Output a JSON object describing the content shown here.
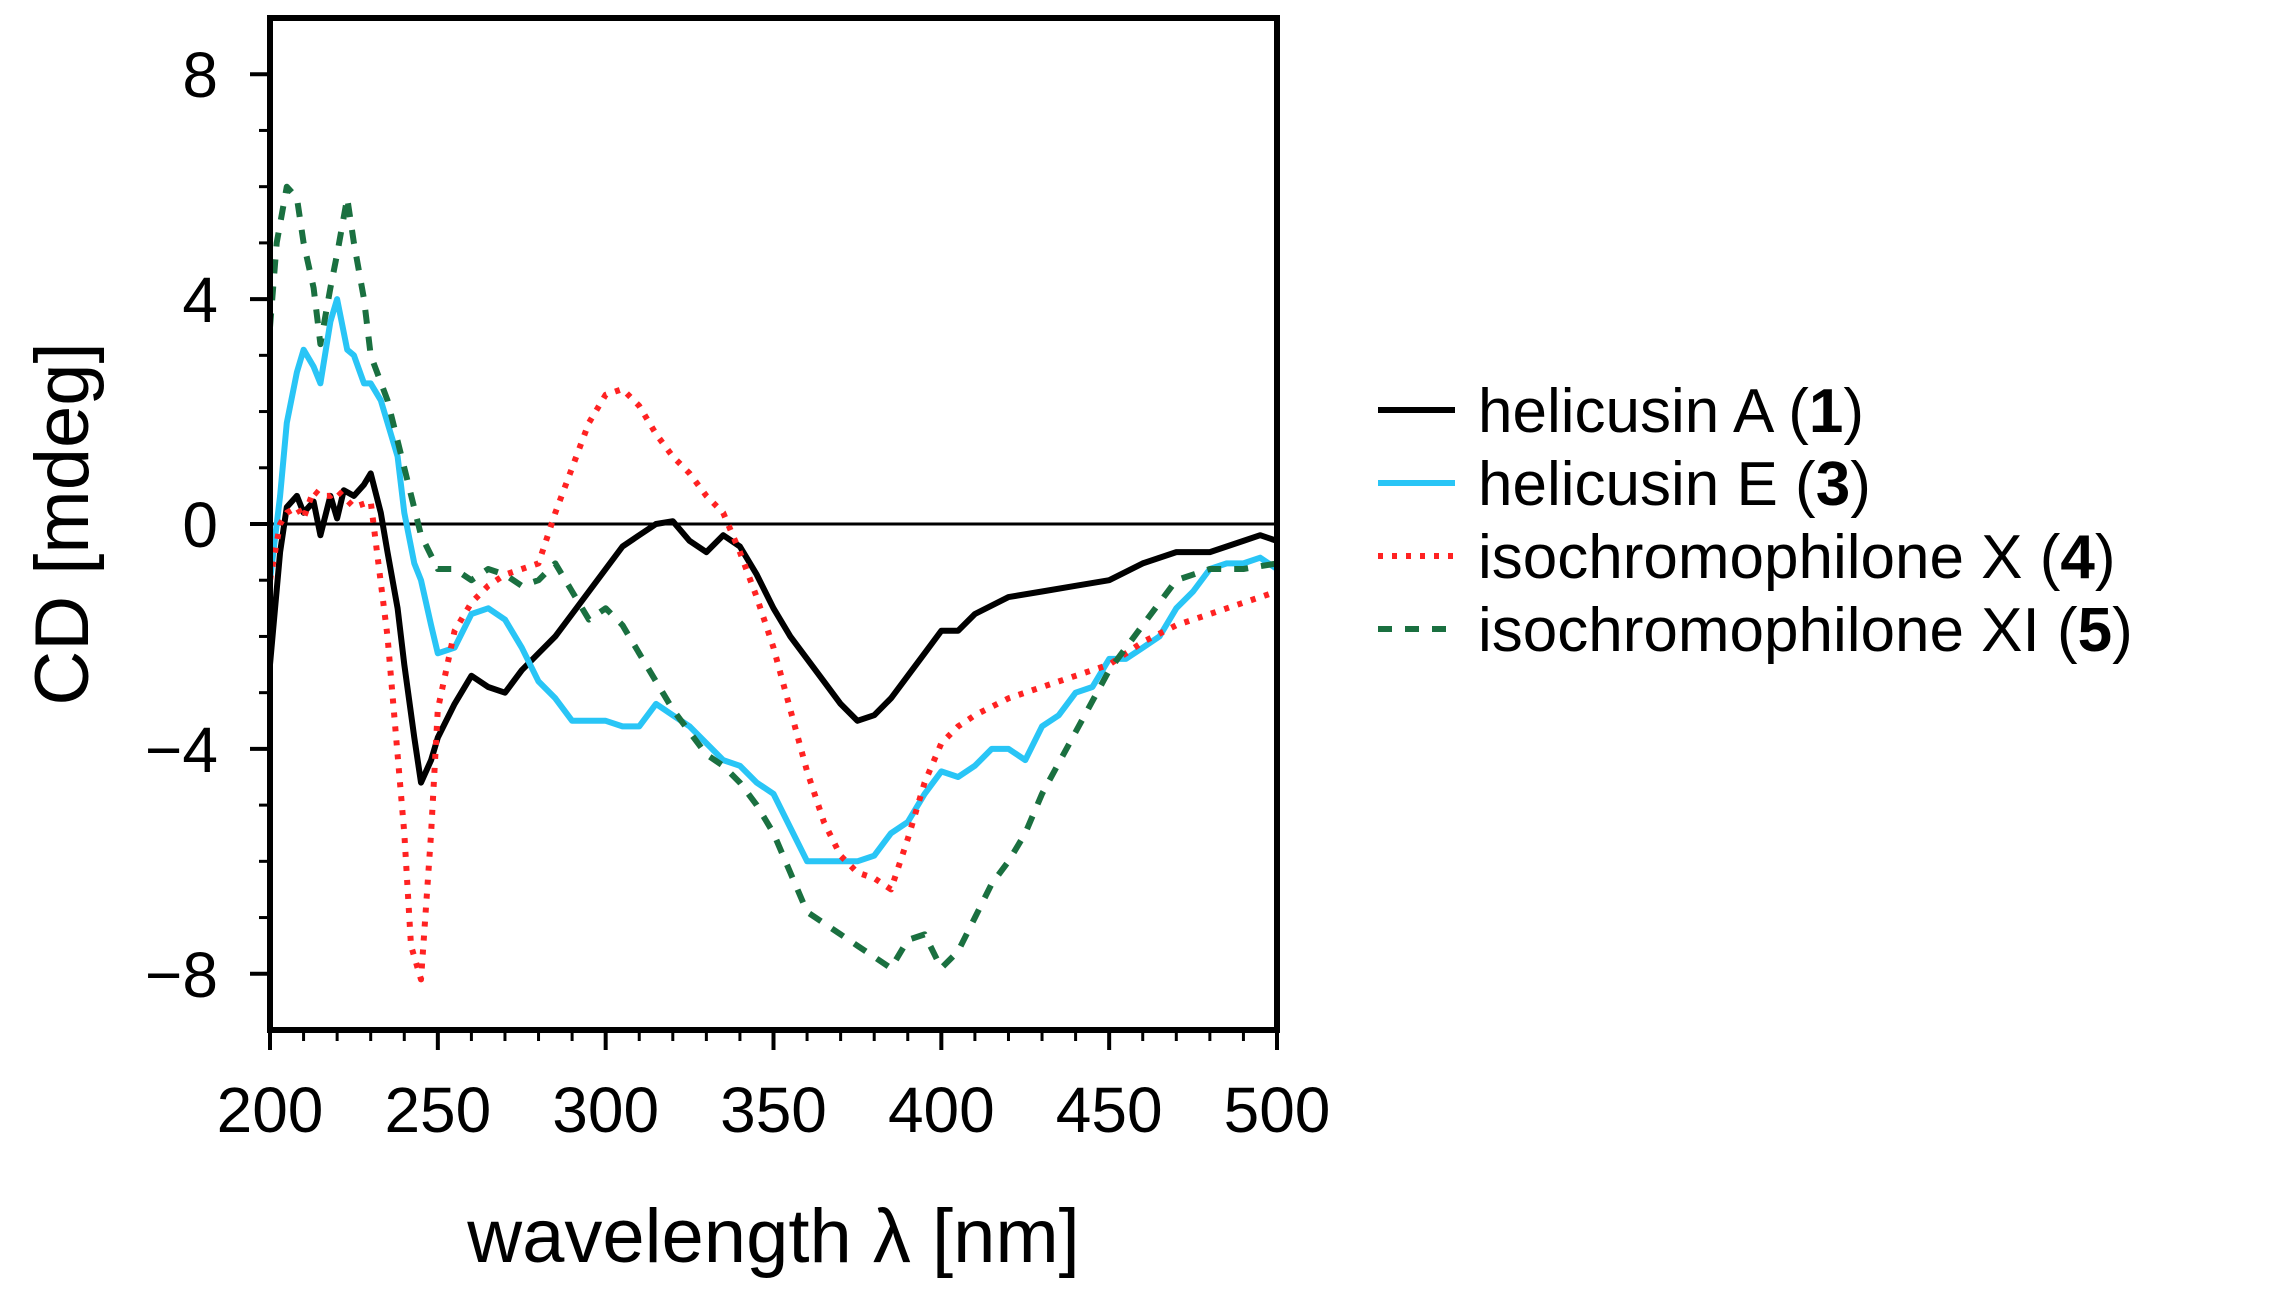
{
  "chart_data": {
    "type": "line",
    "title": "",
    "xlabel": "wavelength λ [nm]",
    "ylabel": "CD [mdeg]",
    "xlim": [
      200,
      500
    ],
    "ylim": [
      -9,
      9
    ],
    "x_ticks": [
      200,
      250,
      300,
      350,
      400,
      450,
      500
    ],
    "y_ticks": [
      -8,
      -4,
      0,
      4,
      8
    ],
    "x_tick_labels": [
      "200",
      "250",
      "300",
      "350",
      "400",
      "450",
      "500"
    ],
    "y_tick_labels": [
      "−8",
      "−4",
      "0",
      "4",
      "8"
    ],
    "zero_line": true,
    "grid": false,
    "legend_position": "right",
    "series": [
      {
        "name": "helicusin A",
        "number": "1",
        "color": "#000000",
        "style": "solid",
        "x": [
          200,
          203,
          205,
          208,
          210,
          213,
          215,
          218,
          220,
          222,
          225,
          228,
          230,
          233,
          235,
          238,
          240,
          243,
          245,
          248,
          250,
          255,
          260,
          265,
          270,
          275,
          280,
          285,
          290,
          295,
          300,
          305,
          310,
          315,
          320,
          325,
          330,
          335,
          340,
          345,
          350,
          355,
          360,
          365,
          370,
          375,
          380,
          385,
          390,
          395,
          400,
          405,
          410,
          420,
          430,
          440,
          450,
          460,
          470,
          480,
          490,
          495,
          500
        ],
        "y": [
          -2.5,
          -0.5,
          0.3,
          0.5,
          0.2,
          0.4,
          -0.2,
          0.5,
          0.1,
          0.6,
          0.5,
          0.7,
          0.9,
          0.2,
          -0.5,
          -1.5,
          -2.5,
          -3.8,
          -4.6,
          -4.2,
          -3.8,
          -3.2,
          -2.7,
          -2.9,
          -3.0,
          -2.6,
          -2.3,
          -2.0,
          -1.6,
          -1.2,
          -0.8,
          -0.4,
          -0.2,
          0.0,
          0.05,
          -0.3,
          -0.5,
          -0.2,
          -0.4,
          -0.9,
          -1.5,
          -2.0,
          -2.4,
          -2.8,
          -3.2,
          -3.5,
          -3.4,
          -3.1,
          -2.7,
          -2.3,
          -1.9,
          -1.9,
          -1.6,
          -1.3,
          -1.2,
          -1.1,
          -1.0,
          -0.7,
          -0.5,
          -0.5,
          -0.3,
          -0.2,
          -0.3
        ]
      },
      {
        "name": "helicusin E",
        "number": "3",
        "color": "#29C5F6",
        "style": "solid",
        "x": [
          200,
          203,
          205,
          208,
          210,
          213,
          215,
          218,
          220,
          223,
          225,
          228,
          230,
          233,
          235,
          238,
          240,
          243,
          245,
          248,
          250,
          255,
          260,
          265,
          270,
          275,
          280,
          285,
          290,
          295,
          300,
          305,
          310,
          315,
          320,
          325,
          330,
          335,
          340,
          345,
          350,
          355,
          360,
          365,
          370,
          375,
          380,
          385,
          390,
          395,
          400,
          405,
          410,
          415,
          420,
          425,
          430,
          435,
          440,
          445,
          450,
          455,
          460,
          465,
          470,
          475,
          480,
          485,
          490,
          495,
          500
        ],
        "y": [
          -1.0,
          0.5,
          1.8,
          2.7,
          3.1,
          2.8,
          2.5,
          3.6,
          4.0,
          3.1,
          3.0,
          2.5,
          2.5,
          2.2,
          1.8,
          1.2,
          0.2,
          -0.7,
          -1.0,
          -1.8,
          -2.3,
          -2.2,
          -1.6,
          -1.5,
          -1.7,
          -2.2,
          -2.8,
          -3.1,
          -3.5,
          -3.5,
          -3.5,
          -3.6,
          -3.6,
          -3.2,
          -3.4,
          -3.6,
          -3.9,
          -4.2,
          -4.3,
          -4.6,
          -4.8,
          -5.4,
          -6.0,
          -6.0,
          -6.0,
          -6.0,
          -5.9,
          -5.5,
          -5.3,
          -4.8,
          -4.4,
          -4.5,
          -4.3,
          -4.0,
          -4.0,
          -4.2,
          -3.6,
          -3.4,
          -3.0,
          -2.9,
          -2.4,
          -2.4,
          -2.2,
          -2.0,
          -1.5,
          -1.2,
          -0.8,
          -0.7,
          -0.7,
          -0.6,
          -0.8
        ]
      },
      {
        "name": "isochromophilone X",
        "number": "4",
        "color": "#FF2222",
        "style": "dotted",
        "x": [
          200,
          203,
          205,
          208,
          210,
          213,
          215,
          218,
          220,
          225,
          230,
          235,
          240,
          242,
          245,
          248,
          250,
          255,
          260,
          265,
          270,
          275,
          280,
          285,
          290,
          295,
          300,
          305,
          310,
          315,
          320,
          325,
          330,
          335,
          340,
          345,
          350,
          355,
          360,
          365,
          370,
          375,
          380,
          385,
          390,
          395,
          400,
          405,
          410,
          420,
          430,
          440,
          450,
          460,
          470,
          480,
          490,
          500
        ],
        "y": [
          -1.0,
          0.0,
          0.2,
          0.3,
          0.1,
          0.6,
          0.5,
          0.5,
          0.6,
          0.3,
          0.4,
          -2.0,
          -5.5,
          -7.5,
          -8.1,
          -5.5,
          -3.3,
          -1.9,
          -1.4,
          -1.1,
          -0.9,
          -0.8,
          -0.7,
          0.2,
          1.0,
          1.8,
          2.3,
          2.4,
          2.1,
          1.6,
          1.2,
          0.9,
          0.5,
          0.2,
          -0.5,
          -1.3,
          -2.2,
          -3.3,
          -4.4,
          -5.3,
          -5.9,
          -6.2,
          -6.3,
          -6.5,
          -5.6,
          -4.6,
          -3.9,
          -3.6,
          -3.4,
          -3.1,
          -2.9,
          -2.7,
          -2.5,
          -2.1,
          -1.8,
          -1.6,
          -1.4,
          -1.2
        ]
      },
      {
        "name": "isochromophilone XI",
        "number": "5",
        "color": "#1A7040",
        "style": "dashed",
        "x": [
          200,
          202,
          205,
          208,
          210,
          213,
          215,
          218,
          220,
          223,
          225,
          228,
          230,
          235,
          240,
          245,
          250,
          255,
          260,
          265,
          270,
          275,
          280,
          285,
          290,
          295,
          300,
          305,
          310,
          315,
          320,
          325,
          330,
          335,
          340,
          345,
          350,
          355,
          360,
          365,
          370,
          375,
          380,
          385,
          390,
          395,
          400,
          405,
          410,
          415,
          420,
          425,
          430,
          440,
          450,
          460,
          470,
          480,
          490,
          500
        ],
        "y": [
          3.5,
          5.0,
          6.0,
          5.8,
          5.0,
          4.2,
          3.2,
          4.2,
          4.8,
          5.8,
          5.0,
          4.0,
          3.0,
          2.2,
          1.0,
          -0.2,
          -0.8,
          -0.8,
          -1.0,
          -0.8,
          -0.9,
          -1.1,
          -1.0,
          -0.7,
          -1.2,
          -1.7,
          -1.5,
          -1.8,
          -2.3,
          -2.8,
          -3.3,
          -3.7,
          -4.1,
          -4.3,
          -4.6,
          -5.0,
          -5.5,
          -6.2,
          -6.9,
          -7.1,
          -7.3,
          -7.5,
          -7.7,
          -7.9,
          -7.4,
          -7.3,
          -7.9,
          -7.6,
          -7.0,
          -6.4,
          -6.0,
          -5.5,
          -4.8,
          -3.7,
          -2.6,
          -1.8,
          -1.0,
          -0.8,
          -0.8,
          -0.7
        ]
      }
    ]
  }
}
